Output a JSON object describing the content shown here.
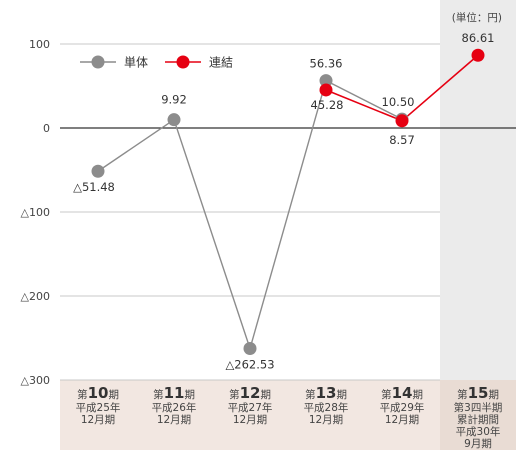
{
  "chart_data": {
    "type": "line",
    "unit_note": "(単位：円)",
    "yticks": [
      {
        "value": 100,
        "label": "100"
      },
      {
        "value": 0,
        "label": "0"
      },
      {
        "value": -100,
        "label": "△100"
      },
      {
        "value": -200,
        "label": "△200"
      },
      {
        "value": -300,
        "label": "△300"
      }
    ],
    "ylim": [
      -300,
      100
    ],
    "grid": true,
    "legend_position": "top-left",
    "categories": [
      {
        "prefix": "第",
        "num": "10",
        "suffix": "期",
        "lines": [
          "平成25年",
          "12月期"
        ]
      },
      {
        "prefix": "第",
        "num": "11",
        "suffix": "期",
        "lines": [
          "平成26年",
          "12月期"
        ]
      },
      {
        "prefix": "第",
        "num": "12",
        "suffix": "期",
        "lines": [
          "平成27年",
          "12月期"
        ]
      },
      {
        "prefix": "第",
        "num": "13",
        "suffix": "期",
        "lines": [
          "平成28年",
          "12月期"
        ]
      },
      {
        "prefix": "第",
        "num": "14",
        "suffix": "期",
        "lines": [
          "平成29年",
          "12月期"
        ]
      },
      {
        "prefix": "第",
        "num": "15",
        "suffix": "期",
        "lines": [
          "第3四半期",
          "累計期間",
          "平成30年",
          "9月期"
        ]
      }
    ],
    "highlight_category_index": 5,
    "series": [
      {
        "name": "単体",
        "color": "#8c8c8c",
        "values": [
          -51.48,
          9.92,
          -262.53,
          56.36,
          10.5,
          null
        ],
        "labels": [
          "△51.48",
          "9.92",
          "△262.53",
          "56.36",
          "10.50",
          ""
        ]
      },
      {
        "name": "連結",
        "color": "#e60012",
        "values": [
          null,
          null,
          null,
          45.28,
          8.57,
          86.61
        ],
        "labels": [
          "",
          "",
          "",
          "45.28",
          "8.57",
          "86.61"
        ]
      }
    ]
  }
}
